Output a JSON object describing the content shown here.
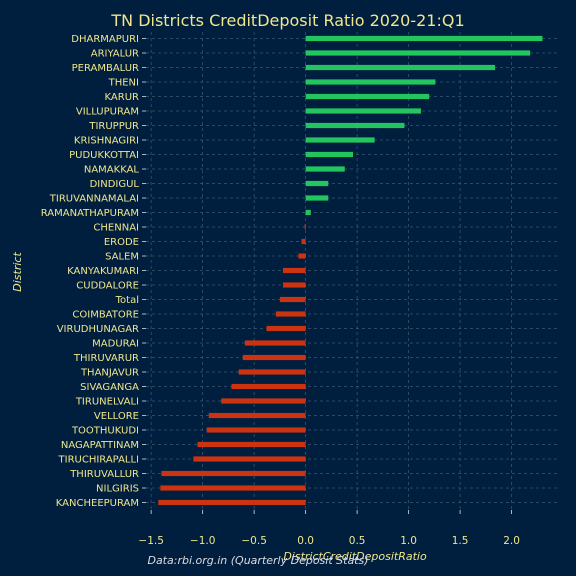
{
  "chart_data": {
    "type": "bar",
    "orientation": "horizontal",
    "title": "TN Districts CreditDeposit Ratio 2020-21:Q1",
    "xlabel": "DistrictCreditDepositRatio",
    "ylabel": "District",
    "source_note": "Data:rbi.org.in (Quarterly Deposit Stats)",
    "xlim": [
      -1.55,
      2.47
    ],
    "xticks": [
      -1.5,
      -1.0,
      -0.5,
      0.0,
      0.5,
      1.0,
      1.5,
      2.0
    ],
    "xtick_labels": [
      "−1.5",
      "−1.0",
      "−0.5",
      "0.0",
      "0.5",
      "1.0",
      "1.5",
      "2.0"
    ],
    "grid": true,
    "positive_color": "#22c55e",
    "negative_color": "#cc3311",
    "categories": [
      "DHARMAPURI",
      "ARIYALUR",
      "PERAMBALUR",
      "THENI",
      "KARUR",
      "VILLUPURAM",
      "TIRUPPUR",
      "KRISHNAGIRI",
      "PUDUKKOTTAI",
      "NAMAKKAL",
      "DINDIGUL",
      "TIRUVANNAMALAI",
      "RAMANATHAPURAM",
      "CHENNAI",
      "ERODE",
      "SALEM",
      "KANYAKUMARI",
      "CUDDALORE",
      "Total",
      "COIMBATORE",
      "VIRUDHUNAGAR",
      "MADURAI",
      "THIRUVARUR",
      "THANJAVUR",
      "SIVAGANGA",
      "TIRUNELVALI",
      "VELLORE",
      "TOOTHUKUDI",
      "NAGAPATTINAM",
      "TIRUCHIRAPALLI",
      "THIRUVALLUR",
      "NILGIRIS",
      "KANCHEEPURAM"
    ],
    "values": [
      2.3,
      2.18,
      1.84,
      1.26,
      1.2,
      1.12,
      0.96,
      0.67,
      0.46,
      0.38,
      0.22,
      0.22,
      0.05,
      -0.01,
      -0.04,
      -0.07,
      -0.22,
      -0.22,
      -0.25,
      -0.29,
      -0.38,
      -0.59,
      -0.61,
      -0.65,
      -0.72,
      -0.82,
      -0.94,
      -0.96,
      -1.05,
      -1.09,
      -1.4,
      -1.41,
      -1.43
    ]
  }
}
